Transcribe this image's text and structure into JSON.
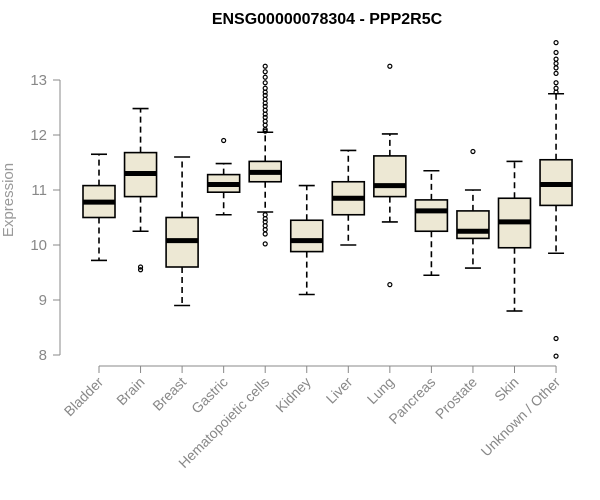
{
  "chart_data": {
    "type": "boxplot",
    "title": "ENSG00000078304 - PPP2R5C",
    "ylabel": "Expression",
    "ylim": [
      8,
      13.6
    ],
    "yticks": [
      8,
      9,
      10,
      11,
      12,
      13
    ],
    "colors": {
      "box_fill": "#EDE8D4",
      "stroke": "#000000",
      "axis": "#888888"
    },
    "categories": [
      "Bladder",
      "Brain",
      "Breast",
      "Gastric",
      "Hematopoietic cells",
      "Kidney",
      "Liver",
      "Lung",
      "Pancreas",
      "Prostate",
      "Skin",
      "Unknown / Other"
    ],
    "series": [
      {
        "category": "Bladder",
        "whisker_low": 9.72,
        "q1": 10.5,
        "median": 10.78,
        "q3": 11.08,
        "whisker_high": 11.65,
        "outliers": []
      },
      {
        "category": "Brain",
        "whisker_low": 10.25,
        "q1": 10.88,
        "median": 11.3,
        "q3": 11.68,
        "whisker_high": 12.48,
        "outliers": [
          9.6,
          9.55
        ]
      },
      {
        "category": "Breast",
        "whisker_low": 8.9,
        "q1": 9.6,
        "median": 10.08,
        "q3": 10.5,
        "whisker_high": 11.6,
        "outliers": []
      },
      {
        "category": "Gastric",
        "whisker_low": 10.55,
        "q1": 10.96,
        "median": 11.1,
        "q3": 11.28,
        "whisker_high": 11.48,
        "outliers": [
          11.9
        ]
      },
      {
        "category": "Hematopoietic cells",
        "whisker_low": 10.6,
        "q1": 11.15,
        "median": 11.32,
        "q3": 11.52,
        "whisker_high": 12.05,
        "outliers": [
          13.25,
          13.15,
          13.05,
          12.95,
          12.85,
          12.78,
          12.72,
          12.65,
          12.58,
          12.52,
          12.45,
          12.38,
          12.32,
          12.25,
          12.18,
          12.1,
          12.07,
          10.55,
          10.48,
          10.42,
          10.35,
          10.28,
          10.2,
          10.02
        ]
      },
      {
        "category": "Kidney",
        "whisker_low": 9.1,
        "q1": 9.88,
        "median": 10.08,
        "q3": 10.45,
        "whisker_high": 11.08,
        "outliers": []
      },
      {
        "category": "Liver",
        "whisker_low": 10.0,
        "q1": 10.55,
        "median": 10.85,
        "q3": 11.15,
        "whisker_high": 11.72,
        "outliers": []
      },
      {
        "category": "Lung",
        "whisker_low": 10.42,
        "q1": 10.88,
        "median": 11.08,
        "q3": 11.62,
        "whisker_high": 12.02,
        "outliers": [
          13.25,
          9.28
        ]
      },
      {
        "category": "Pancreas",
        "whisker_low": 9.45,
        "q1": 10.25,
        "median": 10.62,
        "q3": 10.82,
        "whisker_high": 11.35,
        "outliers": []
      },
      {
        "category": "Prostate",
        "whisker_low": 9.58,
        "q1": 10.12,
        "median": 10.25,
        "q3": 10.62,
        "whisker_high": 11.0,
        "outliers": [
          11.7
        ]
      },
      {
        "category": "Skin",
        "whisker_low": 8.8,
        "q1": 9.95,
        "median": 10.42,
        "q3": 10.85,
        "whisker_high": 11.52,
        "outliers": []
      },
      {
        "category": "Unknown / Other",
        "whisker_low": 9.85,
        "q1": 10.72,
        "median": 11.1,
        "q3": 11.55,
        "whisker_high": 12.75,
        "outliers": [
          13.68,
          13.5,
          13.38,
          13.3,
          13.22,
          13.12,
          12.95,
          12.85,
          12.78,
          8.3,
          7.98
        ]
      }
    ]
  }
}
